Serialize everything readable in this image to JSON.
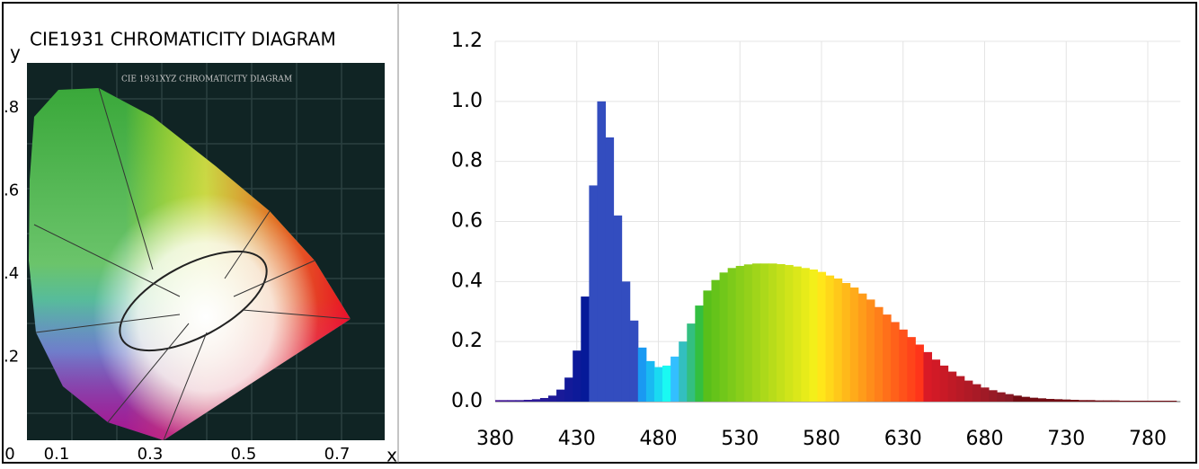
{
  "chart_data": [
    {
      "type": "chromaticity",
      "title": "CIE1931 CHROMATICITY DIAGRAM",
      "image_title": "CIE 1931XYZ CHROMATICITY DIAGRAM",
      "x_label": "x",
      "y_label": "y",
      "xlim": [
        0,
        0.8
      ],
      "ylim": [
        0,
        0.9
      ],
      "xticks": [
        0,
        0.1,
        0.3,
        0.5,
        0.7
      ],
      "yticks": [
        {
          "value": 0.8,
          "label": ".8"
        },
        {
          "value": 0.6,
          "label": ".6"
        },
        {
          "value": 0.4,
          "label": ".4"
        },
        {
          "value": 0.2,
          "label": ".2"
        }
      ]
    },
    {
      "type": "area",
      "xlim": [
        380,
        800
      ],
      "ylim": [
        0,
        1.2
      ],
      "grid": true,
      "xticks": [
        380,
        430,
        480,
        530,
        580,
        630,
        680,
        730,
        780
      ],
      "yticks": [
        {
          "value": 0,
          "label": "0.0"
        },
        0.2,
        0.4,
        0.6,
        0.8,
        {
          "value": 1,
          "label": "1.0"
        },
        1.2
      ],
      "x": [
        380,
        385,
        390,
        395,
        400,
        405,
        410,
        415,
        420,
        425,
        430,
        435,
        440,
        445,
        450,
        455,
        460,
        465,
        470,
        475,
        480,
        485,
        490,
        495,
        500,
        505,
        510,
        515,
        520,
        525,
        530,
        535,
        540,
        545,
        550,
        555,
        560,
        565,
        570,
        575,
        580,
        585,
        590,
        595,
        600,
        605,
        610,
        615,
        620,
        625,
        630,
        635,
        640,
        645,
        650,
        655,
        660,
        665,
        670,
        675,
        680,
        685,
        690,
        695,
        700,
        705,
        710,
        715,
        720,
        725,
        730,
        735,
        740,
        745,
        750,
        755,
        760,
        765,
        770,
        775,
        780,
        785,
        790,
        795
      ],
      "values": [
        0.005,
        0.005,
        0.005,
        0.005,
        0.006,
        0.008,
        0.012,
        0.02,
        0.04,
        0.08,
        0.17,
        0.35,
        0.72,
        1.0,
        0.88,
        0.62,
        0.4,
        0.27,
        0.18,
        0.135,
        0.115,
        0.12,
        0.15,
        0.2,
        0.26,
        0.32,
        0.37,
        0.405,
        0.43,
        0.445,
        0.452,
        0.457,
        0.46,
        0.46,
        0.46,
        0.458,
        0.455,
        0.45,
        0.445,
        0.44,
        0.432,
        0.42,
        0.41,
        0.395,
        0.38,
        0.36,
        0.34,
        0.315,
        0.29,
        0.265,
        0.24,
        0.215,
        0.19,
        0.165,
        0.14,
        0.12,
        0.1,
        0.085,
        0.07,
        0.058,
        0.047,
        0.038,
        0.031,
        0.025,
        0.02,
        0.016,
        0.013,
        0.011,
        0.009,
        0.008,
        0.007,
        0.006,
        0.005,
        0.005,
        0.004,
        0.004,
        0.004,
        0.003,
        0.003,
        0.003,
        0.003,
        0.003,
        0.003,
        0.003
      ]
    }
  ]
}
